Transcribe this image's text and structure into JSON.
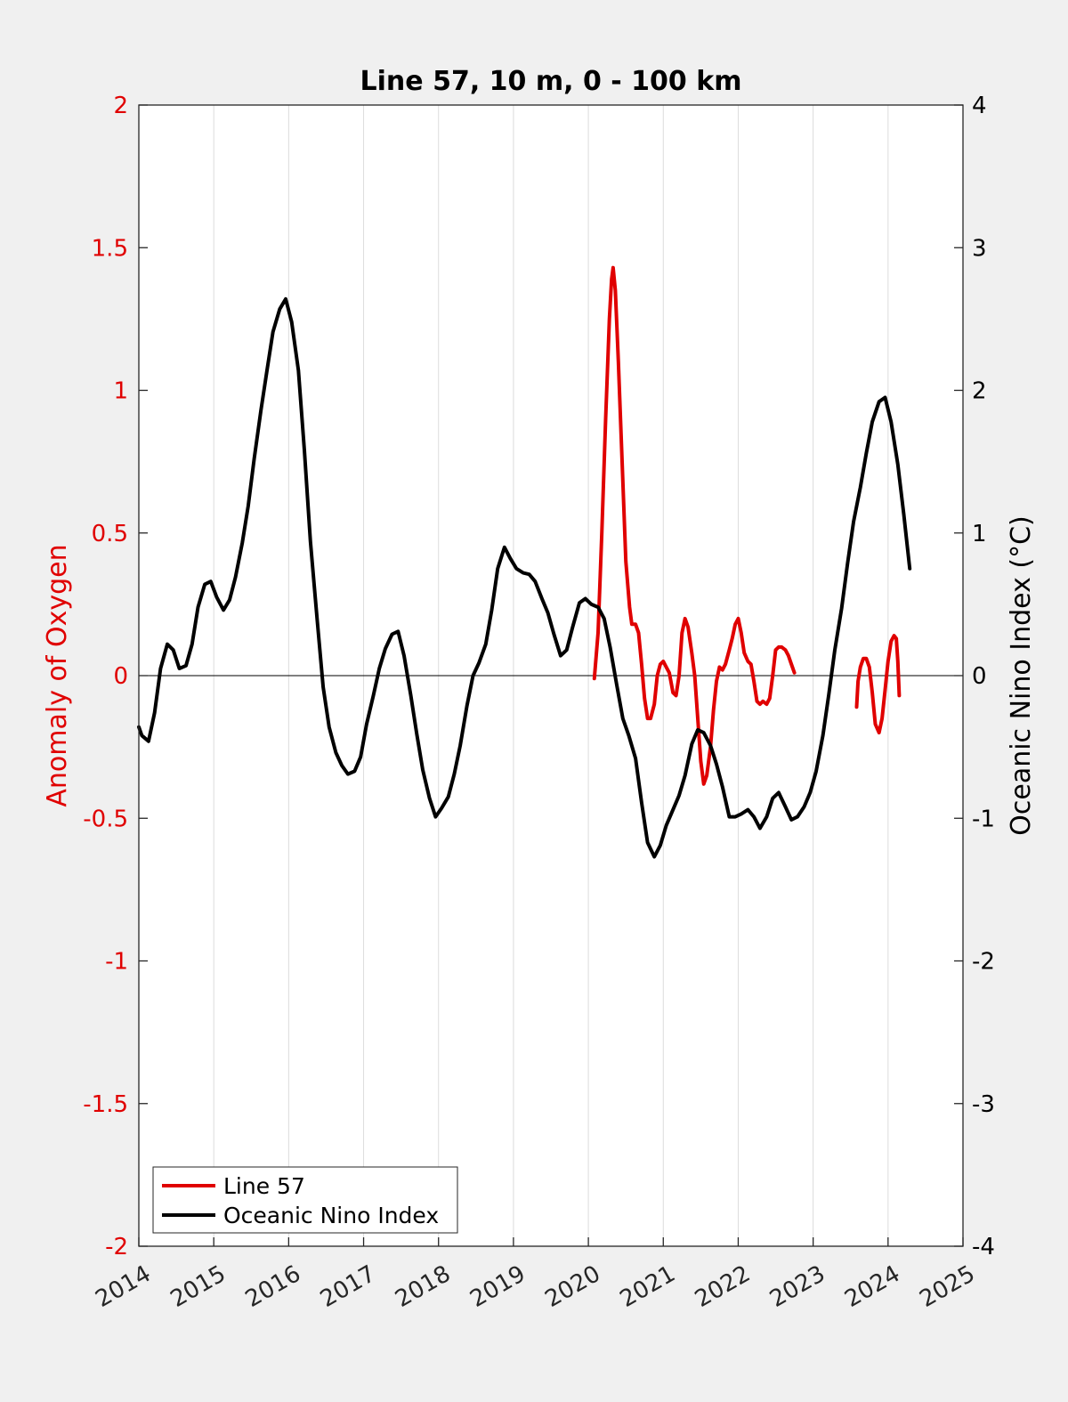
{
  "chart_data": {
    "type": "line",
    "title": "Line 57, 10 m, 0 - 100 km",
    "xlim": [
      2014,
      2025
    ],
    "x_ticks": [
      "2014",
      "2015",
      "2016",
      "2017",
      "2018",
      "2019",
      "2020",
      "2021",
      "2022",
      "2023",
      "2024",
      "2025"
    ],
    "left_axis": {
      "label": "Anomaly of Oxygen",
      "color": "#e00000",
      "ylim": [
        -2,
        2
      ],
      "ticks": [
        "-2",
        "-1.5",
        "-1",
        "-0.5",
        "0",
        "0.5",
        "1",
        "1.5",
        "2"
      ]
    },
    "right_axis": {
      "label": "Oceanic Nino Index (°C)",
      "color": "#000000",
      "ylim": [
        -4,
        4
      ],
      "ticks": [
        "-4",
        "-3",
        "-2",
        "-1",
        "0",
        "1",
        "2",
        "3",
        "4"
      ]
    },
    "grid": "vertical",
    "zero_line": true,
    "legend_position": "bottom-left",
    "series": [
      {
        "name": "Line 57",
        "axis": "left",
        "color": "#e00000",
        "segments": [
          [
            [
              2020.08,
              -0.01
            ],
            [
              2020.13,
              0.15
            ],
            [
              2020.18,
              0.5
            ],
            [
              2020.23,
              0.9
            ],
            [
              2020.28,
              1.25
            ],
            [
              2020.31,
              1.39
            ],
            [
              2020.33,
              1.43
            ],
            [
              2020.36,
              1.35
            ],
            [
              2020.4,
              1.1
            ],
            [
              2020.45,
              0.75
            ],
            [
              2020.5,
              0.4
            ],
            [
              2020.55,
              0.24
            ],
            [
              2020.58,
              0.18
            ],
            [
              2020.63,
              0.18
            ],
            [
              2020.67,
              0.15
            ],
            [
              2020.71,
              0.04
            ],
            [
              2020.75,
              -0.08
            ],
            [
              2020.79,
              -0.15
            ],
            [
              2020.83,
              -0.15
            ],
            [
              2020.88,
              -0.1
            ],
            [
              2020.92,
              0.0
            ],
            [
              2020.96,
              0.04
            ],
            [
              2021.0,
              0.05
            ],
            [
              2021.04,
              0.03
            ],
            [
              2021.08,
              0.01
            ],
            [
              2021.13,
              -0.06
            ],
            [
              2021.17,
              -0.07
            ],
            [
              2021.21,
              0.0
            ],
            [
              2021.25,
              0.15
            ],
            [
              2021.29,
              0.2
            ],
            [
              2021.33,
              0.17
            ],
            [
              2021.38,
              0.08
            ],
            [
              2021.42,
              0.0
            ],
            [
              2021.46,
              -0.15
            ],
            [
              2021.5,
              -0.3
            ],
            [
              2021.54,
              -0.38
            ],
            [
              2021.58,
              -0.35
            ],
            [
              2021.63,
              -0.25
            ],
            [
              2021.67,
              -0.12
            ],
            [
              2021.71,
              -0.02
            ],
            [
              2021.75,
              0.03
            ],
            [
              2021.79,
              0.02
            ],
            [
              2021.83,
              0.04
            ],
            [
              2021.88,
              0.09
            ],
            [
              2021.92,
              0.13
            ],
            [
              2021.96,
              0.18
            ],
            [
              2022.0,
              0.2
            ],
            [
              2022.04,
              0.15
            ],
            [
              2022.08,
              0.08
            ],
            [
              2022.13,
              0.05
            ],
            [
              2022.17,
              0.04
            ],
            [
              2022.21,
              -0.02
            ],
            [
              2022.25,
              -0.09
            ],
            [
              2022.29,
              -0.1
            ],
            [
              2022.33,
              -0.09
            ],
            [
              2022.38,
              -0.1
            ],
            [
              2022.42,
              -0.08
            ],
            [
              2022.46,
              0.0
            ],
            [
              2022.5,
              0.09
            ],
            [
              2022.54,
              0.1
            ],
            [
              2022.58,
              0.1
            ],
            [
              2022.63,
              0.09
            ],
            [
              2022.67,
              0.07
            ],
            [
              2022.71,
              0.04
            ],
            [
              2022.75,
              0.01
            ]
          ],
          [
            [
              2023.58,
              -0.11
            ],
            [
              2023.6,
              -0.02
            ],
            [
              2023.63,
              0.03
            ],
            [
              2023.67,
              0.06
            ],
            [
              2023.71,
              0.06
            ],
            [
              2023.75,
              0.03
            ],
            [
              2023.79,
              -0.06
            ],
            [
              2023.83,
              -0.17
            ],
            [
              2023.88,
              -0.2
            ],
            [
              2023.92,
              -0.15
            ],
            [
              2023.96,
              -0.05
            ],
            [
              2024.0,
              0.05
            ],
            [
              2024.04,
              0.12
            ],
            [
              2024.08,
              0.14
            ],
            [
              2024.11,
              0.13
            ],
            [
              2024.13,
              0.05
            ],
            [
              2024.15,
              -0.07
            ]
          ]
        ]
      },
      {
        "name": "Oceanic Nino Index",
        "axis": "right",
        "color": "#000000",
        "segments": [
          [
            [
              2014.0,
              -0.36
            ],
            [
              2014.04,
              -0.42
            ],
            [
              2014.13,
              -0.46
            ],
            [
              2014.21,
              -0.26
            ],
            [
              2014.29,
              0.05
            ],
            [
              2014.38,
              0.22
            ],
            [
              2014.46,
              0.18
            ],
            [
              2014.54,
              0.05
            ],
            [
              2014.63,
              0.07
            ],
            [
              2014.71,
              0.22
            ],
            [
              2014.79,
              0.48
            ],
            [
              2014.88,
              0.64
            ],
            [
              2014.96,
              0.66
            ],
            [
              2015.04,
              0.55
            ],
            [
              2015.13,
              0.46
            ],
            [
              2015.21,
              0.53
            ],
            [
              2015.29,
              0.69
            ],
            [
              2015.38,
              0.93
            ],
            [
              2015.46,
              1.19
            ],
            [
              2015.54,
              1.52
            ],
            [
              2015.63,
              1.86
            ],
            [
              2015.71,
              2.14
            ],
            [
              2015.79,
              2.41
            ],
            [
              2015.88,
              2.57
            ],
            [
              2015.96,
              2.64
            ],
            [
              2016.04,
              2.48
            ],
            [
              2016.13,
              2.14
            ],
            [
              2016.21,
              1.58
            ],
            [
              2016.29,
              0.94
            ],
            [
              2016.38,
              0.39
            ],
            [
              2016.46,
              -0.08
            ],
            [
              2016.54,
              -0.36
            ],
            [
              2016.63,
              -0.54
            ],
            [
              2016.71,
              -0.63
            ],
            [
              2016.79,
              -0.69
            ],
            [
              2016.88,
              -0.67
            ],
            [
              2016.96,
              -0.57
            ],
            [
              2017.04,
              -0.34
            ],
            [
              2017.13,
              -0.14
            ],
            [
              2017.21,
              0.05
            ],
            [
              2017.29,
              0.19
            ],
            [
              2017.38,
              0.29
            ],
            [
              2017.46,
              0.31
            ],
            [
              2017.54,
              0.14
            ],
            [
              2017.63,
              -0.14
            ],
            [
              2017.71,
              -0.41
            ],
            [
              2017.79,
              -0.66
            ],
            [
              2017.88,
              -0.86
            ],
            [
              2017.96,
              -0.99
            ],
            [
              2018.04,
              -0.93
            ],
            [
              2018.13,
              -0.85
            ],
            [
              2018.21,
              -0.69
            ],
            [
              2018.29,
              -0.49
            ],
            [
              2018.38,
              -0.21
            ],
            [
              2018.46,
              0.0
            ],
            [
              2018.54,
              0.09
            ],
            [
              2018.63,
              0.22
            ],
            [
              2018.71,
              0.46
            ],
            [
              2018.79,
              0.75
            ],
            [
              2018.88,
              0.9
            ],
            [
              2018.96,
              0.82
            ],
            [
              2019.04,
              0.75
            ],
            [
              2019.13,
              0.72
            ],
            [
              2019.21,
              0.71
            ],
            [
              2019.29,
              0.66
            ],
            [
              2019.38,
              0.54
            ],
            [
              2019.46,
              0.44
            ],
            [
              2019.54,
              0.29
            ],
            [
              2019.63,
              0.14
            ],
            [
              2019.71,
              0.18
            ],
            [
              2019.79,
              0.34
            ],
            [
              2019.88,
              0.51
            ],
            [
              2019.96,
              0.54
            ],
            [
              2020.04,
              0.5
            ],
            [
              2020.13,
              0.48
            ],
            [
              2020.21,
              0.4
            ],
            [
              2020.29,
              0.2
            ],
            [
              2020.38,
              -0.07
            ],
            [
              2020.46,
              -0.3
            ],
            [
              2020.54,
              -0.42
            ],
            [
              2020.63,
              -0.58
            ],
            [
              2020.71,
              -0.89
            ],
            [
              2020.79,
              -1.17
            ],
            [
              2020.88,
              -1.27
            ],
            [
              2020.96,
              -1.19
            ],
            [
              2021.04,
              -1.05
            ],
            [
              2021.13,
              -0.94
            ],
            [
              2021.21,
              -0.84
            ],
            [
              2021.29,
              -0.7
            ],
            [
              2021.38,
              -0.48
            ],
            [
              2021.46,
              -0.38
            ],
            [
              2021.54,
              -0.4
            ],
            [
              2021.63,
              -0.49
            ],
            [
              2021.71,
              -0.62
            ],
            [
              2021.79,
              -0.78
            ],
            [
              2021.88,
              -0.99
            ],
            [
              2021.96,
              -0.99
            ],
            [
              2022.04,
              -0.97
            ],
            [
              2022.13,
              -0.94
            ],
            [
              2022.21,
              -0.99
            ],
            [
              2022.29,
              -1.07
            ],
            [
              2022.38,
              -0.99
            ],
            [
              2022.46,
              -0.86
            ],
            [
              2022.54,
              -0.82
            ],
            [
              2022.63,
              -0.92
            ],
            [
              2022.71,
              -1.01
            ],
            [
              2022.79,
              -0.99
            ],
            [
              2022.88,
              -0.92
            ],
            [
              2022.96,
              -0.82
            ],
            [
              2023.04,
              -0.67
            ],
            [
              2023.13,
              -0.42
            ],
            [
              2023.21,
              -0.13
            ],
            [
              2023.29,
              0.18
            ],
            [
              2023.38,
              0.47
            ],
            [
              2023.46,
              0.79
            ],
            [
              2023.54,
              1.08
            ],
            [
              2023.63,
              1.32
            ],
            [
              2023.71,
              1.56
            ],
            [
              2023.79,
              1.78
            ],
            [
              2023.88,
              1.92
            ],
            [
              2023.96,
              1.95
            ],
            [
              2024.04,
              1.78
            ],
            [
              2024.13,
              1.48
            ],
            [
              2024.21,
              1.13
            ],
            [
              2024.29,
              0.75
            ]
          ]
        ]
      }
    ]
  }
}
